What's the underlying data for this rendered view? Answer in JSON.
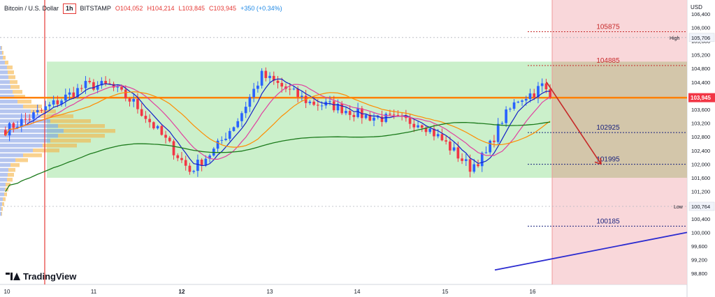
{
  "header": {
    "symbol": "Bitcoin / U.S. Dollar",
    "timeframe": "1h",
    "exchange": "BITSTAMP",
    "open": "O104,052",
    "high": "H104,214",
    "low": "L103,845",
    "close": "C103,945",
    "change": "+350 (+0.34%)"
  },
  "branding": {
    "logo_text": "TradingView"
  },
  "price_axis": {
    "currency": "USD",
    "ticks": [
      "106,400",
      "106,000",
      "105,600",
      "105,200",
      "104,800",
      "104,400",
      "104,000",
      "103,600",
      "103,200",
      "102,800",
      "102,400",
      "102,000",
      "101,600",
      "101,200",
      "100,800",
      "100,400",
      "100,000",
      "99,600",
      "99,200",
      "98,800"
    ],
    "high_label": "High",
    "high_value": "105,706",
    "low_label": "Low",
    "low_value": "100,764",
    "last_price": "103,945"
  },
  "time_axis": {
    "ticks": [
      "10",
      "11",
      "12",
      "13",
      "14",
      "15",
      "16"
    ]
  },
  "levels": [
    {
      "label": "105875",
      "color": "#c62828"
    },
    {
      "label": "104885",
      "color": "#c62828"
    },
    {
      "label": "102925",
      "color": "#1a237e"
    },
    {
      "label": "101995",
      "color": "#1a237e"
    },
    {
      "label": "100185",
      "color": "#1a237e"
    }
  ],
  "colors": {
    "bull": "#2962ff",
    "bear": "#f23645",
    "support_zone": "#c8efc8",
    "resistance_zone": "#f8d0d3",
    "key_level": "#ff7f00"
  },
  "chart_data": {
    "type": "candlestick",
    "y_range": [
      98800,
      106600
    ],
    "x_range_days": [
      "10",
      "16"
    ],
    "candle_count": 94,
    "close_start": 103000,
    "close_end": 103945,
    "key_level": 103945,
    "zone": [
      101600,
      105000
    ],
    "session_high": 105706,
    "session_low": 100764,
    "targets": [
      105875,
      104885,
      102925,
      101995,
      100185
    ],
    "moving_averages": [
      {
        "color": "#1520c8"
      },
      {
        "color": "#e040a0"
      },
      {
        "color": "#ff8c00"
      },
      {
        "color": "#1b7a1b"
      }
    ],
    "grid": true
  }
}
